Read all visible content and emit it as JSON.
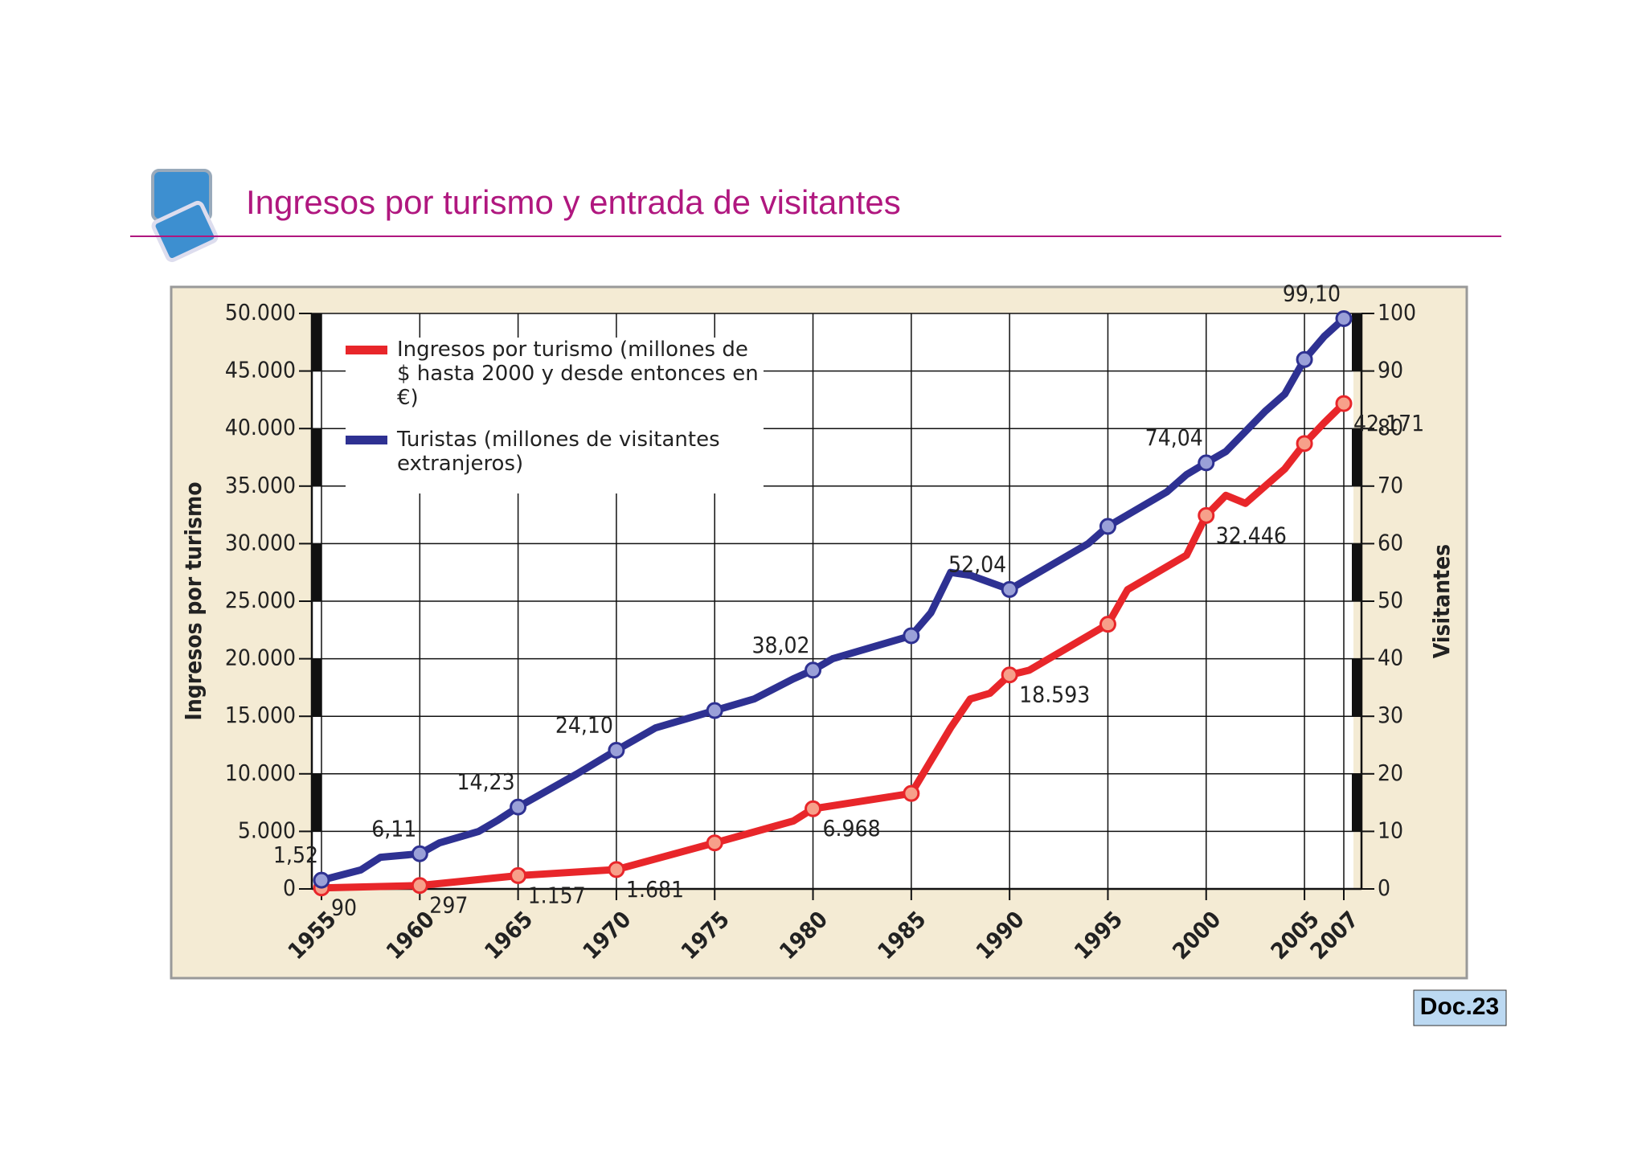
{
  "header": {
    "title": "Ingresos por turismo y entrada de visitantes",
    "doc": "Doc.23"
  },
  "chart_data": {
    "type": "line",
    "y_label": "Ingresos por turismo",
    "y2_label": "Visitantes",
    "xlim": [
      1955,
      2007
    ],
    "xticks": [
      1955,
      1960,
      1965,
      1970,
      1975,
      1980,
      1985,
      1990,
      1995,
      2000,
      2005,
      2007
    ],
    "ylim": [
      0,
      50000
    ],
    "yticks": [
      0,
      {
        "value": 5000,
        "label": "5.000"
      },
      {
        "value": 10000,
        "label": "10.000"
      },
      {
        "value": 15000,
        "label": "15.000"
      },
      {
        "value": 20000,
        "label": "20.000"
      },
      {
        "value": 25000,
        "label": "25.000"
      },
      {
        "value": 30000,
        "label": "30.000"
      },
      {
        "value": 35000,
        "label": "35.000"
      },
      {
        "value": 40000,
        "label": "40.000"
      },
      {
        "value": 45000,
        "label": "45.000"
      },
      {
        "value": 50000,
        "label": "50.000"
      }
    ],
    "y2lim": [
      0,
      100
    ],
    "y2ticks": [
      0,
      10,
      20,
      30,
      40,
      50,
      60,
      70,
      80,
      90,
      100
    ],
    "grid": true,
    "series": [
      {
        "name": "Ingresos por turismo (millones de $ hasta 2000 y desde entonces en €)",
        "color": "#e8262a",
        "x": [
          1955,
          1960,
          1965,
          1970,
          1975,
          1979,
          1980,
          1985,
          1987,
          1988,
          1989,
          1990,
          1991,
          1995,
          1996,
          1999,
          2000,
          2001,
          2002,
          2004,
          2005,
          2006,
          2007
        ],
        "values": [
          90,
          297,
          1157,
          1681,
          4000,
          5900,
          6968,
          8300,
          14000,
          16500,
          17000,
          18593,
          19000,
          23000,
          26000,
          29000,
          32446,
          34200,
          33500,
          36500,
          38700,
          40500,
          42171
        ],
        "value_labels": [
          "90",
          "297",
          "1.157",
          "1.681",
          null,
          null,
          "6.968",
          null,
          null,
          null,
          null,
          "18.593",
          null,
          null,
          null,
          null,
          "32.446",
          null,
          null,
          null,
          null,
          null,
          "42.171"
        ]
      },
      {
        "name": "Turistas (millones de visitantes extranjeros)",
        "color": "#2e3192",
        "axis": "y2",
        "x": [
          1955,
          1957,
          1958,
          1960,
          1961,
          1963,
          1964,
          1965,
          1968,
          1970,
          1972,
          1975,
          1977,
          1979,
          1980,
          1981,
          1985,
          1986,
          1987,
          1988,
          1990,
          1994,
          1995,
          1998,
          1999,
          2000,
          2001,
          2003,
          2004,
          2005,
          2006,
          2007
        ],
        "values": [
          1.52,
          3.3,
          5.5,
          6.11,
          8,
          10,
          12,
          14.23,
          20,
          24.1,
          28,
          31,
          33,
          36.5,
          38.02,
          40,
          44,
          48,
          55,
          54.5,
          52.04,
          60,
          63,
          69,
          72,
          74.04,
          76,
          83,
          86,
          92,
          96,
          99.1
        ],
        "value_labels": [
          "1,52",
          null,
          null,
          "6,11",
          null,
          null,
          null,
          "14,23",
          null,
          "24,10",
          null,
          null,
          null,
          null,
          "38,02",
          null,
          null,
          null,
          null,
          null,
          "52,04",
          null,
          null,
          null,
          null,
          "74,04",
          null,
          null,
          null,
          null,
          null,
          "99,10"
        ]
      }
    ]
  }
}
